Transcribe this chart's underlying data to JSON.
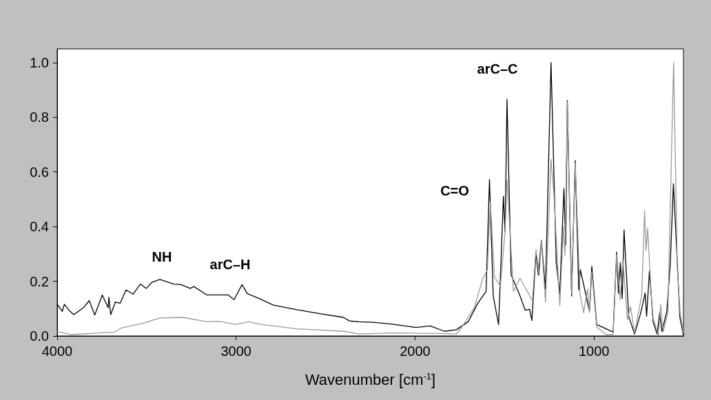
{
  "chart_data": {
    "type": "line",
    "xlabel": "Wavenumber [cm$^{-1}$]",
    "xlim": [
      4000,
      500
    ],
    "xticks": [
      4000,
      3000,
      2000,
      1000
    ],
    "ylim": [
      0,
      1.05
    ],
    "yticks": [
      {
        "value": 0,
        "label": "0.0"
      },
      0.2,
      0.4,
      0.6,
      0.8,
      {
        "value": 1,
        "label": "1.0"
      }
    ],
    "grid": false,
    "legend": false,
    "marker": "none",
    "line_style": "solid",
    "annotations": [
      "NH",
      "arC–H",
      "C=O",
      "arC–C"
    ],
    "series": [
      {
        "color": "#000000",
        "x": [
          4000,
          3971,
          3960,
          3934,
          3907,
          3854,
          3821,
          3790,
          3748,
          3715,
          3711,
          3701,
          3675,
          3648,
          3615,
          3575,
          3535,
          3502,
          3469,
          3426,
          3349,
          3309,
          3256,
          3236,
          3163,
          3044,
          3011,
          2967,
          2938,
          2871,
          2792,
          2659,
          2526,
          2400,
          2367,
          2315,
          2234,
          2127,
          1995,
          1915,
          1835,
          1769,
          1703,
          1649,
          1603,
          1584,
          1563,
          1533,
          1506,
          1497,
          1486,
          1463,
          1413,
          1384,
          1360,
          1347,
          1324,
          1311,
          1294,
          1271,
          1240,
          1211,
          1191,
          1168,
          1158,
          1149,
          1125,
          1105,
          1085,
          1076,
          1025,
          1012,
          985,
          932,
          893,
          873,
          863,
          853,
          842,
          832,
          806,
          773,
          740,
          714,
          706,
          690,
          669,
          647,
          633,
          620,
          593,
          574,
          556,
          540,
          520,
          500
        ],
        "values": [
          0.116,
          0.09,
          0.116,
          0.094,
          0.078,
          0.103,
          0.129,
          0.077,
          0.15,
          0.103,
          0.142,
          0.078,
          0.124,
          0.12,
          0.168,
          0.153,
          0.19,
          0.174,
          0.197,
          0.207,
          0.19,
          0.188,
          0.174,
          0.181,
          0.15,
          0.15,
          0.133,
          0.188,
          0.155,
          0.137,
          0.113,
          0.096,
          0.081,
          0.068,
          0.055,
          0.052,
          0.05,
          0.043,
          0.031,
          0.037,
          0.017,
          0.023,
          0.052,
          0.12,
          0.163,
          0.572,
          0.146,
          0.042,
          0.511,
          0.38,
          0.866,
          0.224,
          0.146,
          0.094,
          0.098,
          0.057,
          0.303,
          0.224,
          0.35,
          0.172,
          1.0,
          0.268,
          0.155,
          0.539,
          0.333,
          0.861,
          0.146,
          0.642,
          0.168,
          0.242,
          0.09,
          0.255,
          0.042,
          0.026,
          0.014,
          0.307,
          0.155,
          0.268,
          0.137,
          0.388,
          0.072,
          0.007,
          0.081,
          0.157,
          0.072,
          0.237,
          0.05,
          0.007,
          0.085,
          0.016,
          0.09,
          0.259,
          0.557,
          0.346,
          0.068,
          0.003
        ]
      },
      {
        "color": "#999999",
        "x": [
          4000,
          3920,
          3761,
          3681,
          3641,
          3522,
          3426,
          3296,
          3163,
          3097,
          3004,
          2931,
          2858,
          2659,
          2393,
          2315,
          2127,
          1862,
          1769,
          1742,
          1669,
          1623,
          1596,
          1579,
          1556,
          1523,
          1497,
          1486,
          1450,
          1413,
          1344,
          1324,
          1306,
          1294,
          1271,
          1240,
          1224,
          1191,
          1171,
          1162,
          1149,
          1125,
          1105,
          1078,
          1058,
          1036,
          1025,
          1012,
          985,
          932,
          893,
          873,
          853,
          839,
          813,
          796,
          773,
          733,
          717,
          709,
          700,
          673,
          640,
          627,
          613,
          587,
          555,
          534,
          518,
          500
        ],
        "values": [
          0.016,
          0.005,
          0.011,
          0.014,
          0.029,
          0.046,
          0.066,
          0.068,
          0.052,
          0.054,
          0.042,
          0.052,
          0.042,
          0.026,
          0.017,
          0.007,
          0.011,
          0.009,
          0.007,
          0.029,
          0.103,
          0.207,
          0.242,
          0.49,
          0.216,
          0.181,
          0.38,
          0.572,
          0.163,
          0.211,
          0.129,
          0.316,
          0.22,
          0.35,
          0.124,
          0.646,
          0.52,
          0.111,
          0.398,
          0.294,
          0.855,
          0.155,
          0.633,
          0.155,
          0.085,
          0.172,
          0.085,
          0.233,
          0.033,
          0.005,
          0.005,
          0.298,
          0.133,
          0.281,
          0.059,
          0.107,
          0.011,
          0.15,
          0.459,
          0.311,
          0.394,
          0.072,
          0.003,
          0.116,
          0.016,
          0.085,
          1.0,
          0.242,
          0.081,
          0.011
        ]
      }
    ]
  }
}
